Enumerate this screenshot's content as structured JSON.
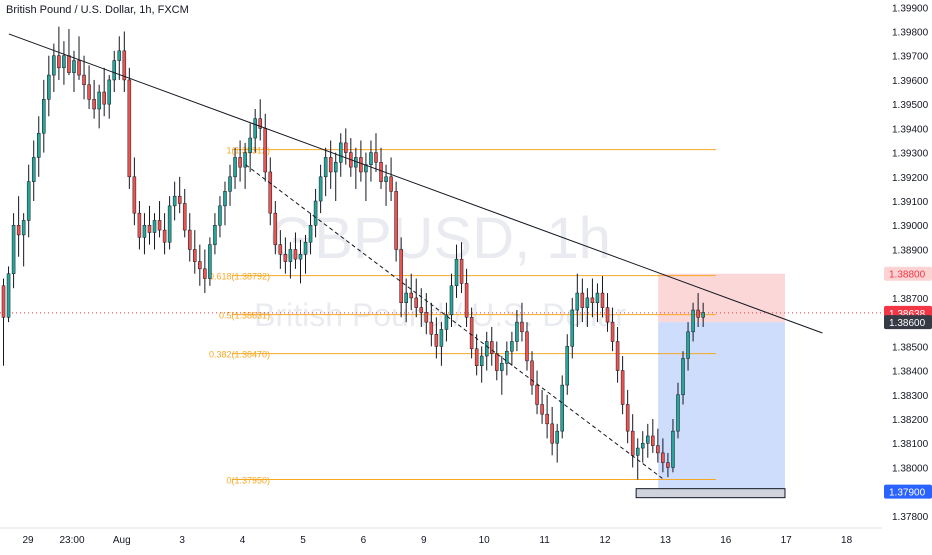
{
  "header": {
    "title": "British Pound / U.S. Dollar, 1h, FXCM"
  },
  "watermark": {
    "symbol": "GBPUSD, 1h",
    "name": "British Pound / U.S. Dollar"
  },
  "colors": {
    "up": "#26a69a",
    "down": "#ef5350",
    "candle": "#131722",
    "fib": "#f7a823",
    "stop_zone": "#fcd3d3",
    "target_zone": "#c9d9fc",
    "current_price_badge": "#f23645",
    "entry_badge": "#363a45",
    "target_badge": "#2962ff"
  },
  "chart_data": {
    "type": "candlestick",
    "x_axis": {
      "tick_labels": [
        "29",
        "23:00",
        "Aug",
        "3",
        "4",
        "5",
        "6",
        "9",
        "10",
        "11",
        "12",
        "13",
        "16",
        "17",
        "18"
      ]
    },
    "y_axis": {
      "range": [
        1.3775,
        1.3993
      ],
      "tick_labels": [
        "1.39900",
        "1.39800",
        "1.39700",
        "1.39600",
        "1.39500",
        "1.39400",
        "1.39300",
        "1.39200",
        "1.39100",
        "1.39000",
        "1.38900",
        "1.38700",
        "1.38500",
        "1.38400",
        "1.38300",
        "1.38200",
        "1.38100",
        "1.38000",
        "1.37800"
      ]
    },
    "price_badges": [
      {
        "label": "1.38800",
        "price": 1.388,
        "role": "stop"
      },
      {
        "label": "1.38638",
        "price": 1.38638,
        "role": "current"
      },
      {
        "label": "1.38600",
        "price": 1.386,
        "role": "entry"
      },
      {
        "label": "1.37900",
        "price": 1.379,
        "role": "target"
      }
    ],
    "fib_levels": [
      {
        "label": "1(1.39312)",
        "price": 1.39312
      },
      {
        "label": "0.618(1.38792)",
        "price": 1.38792
      },
      {
        "label": "0.5(1.38631)",
        "price": 1.38631
      },
      {
        "label": "0.382(1.38470)",
        "price": 1.3847
      },
      {
        "label": "0(1.37950)",
        "price": 1.3795
      }
    ],
    "trendline": {
      "start": {
        "x_index": 0.08,
        "price": 1.3979
      },
      "end": {
        "x_index": 13.55,
        "price": 1.38555
      }
    },
    "dashed_line": {
      "start": {
        "x_index": 4.0,
        "price": 1.3925
      },
      "end": {
        "x_index": 10.9,
        "price": 1.37955
      }
    },
    "position": {
      "type": "short",
      "entry": 1.386,
      "stop": 1.388,
      "target": 1.379,
      "x_start_index": 10.83,
      "x_end_index": 12.93
    },
    "candles_per_day": 12,
    "candles": [
      [
        1.3875,
        1.3878,
        1.3842,
        1.3862
      ],
      [
        1.3862,
        1.3883,
        1.386,
        1.388
      ],
      [
        1.388,
        1.3905,
        1.3874,
        1.39
      ],
      [
        1.39,
        1.3912,
        1.3887,
        1.3896
      ],
      [
        1.3896,
        1.3905,
        1.3883,
        1.3902
      ],
      [
        1.3902,
        1.3925,
        1.3895,
        1.3918
      ],
      [
        1.3918,
        1.3935,
        1.391,
        1.3928
      ],
      [
        1.3928,
        1.3945,
        1.392,
        1.3938
      ],
      [
        1.3938,
        1.396,
        1.393,
        1.3952
      ],
      [
        1.3952,
        1.397,
        1.3945,
        1.3962
      ],
      [
        1.3962,
        1.3975,
        1.3955,
        1.397
      ],
      [
        1.397,
        1.3982,
        1.396,
        1.3965
      ],
      [
        1.3965,
        1.3976,
        1.3958,
        1.397
      ],
      [
        1.397,
        1.3981,
        1.3962,
        1.3963
      ],
      [
        1.3963,
        1.3972,
        1.3955,
        1.3968
      ],
      [
        1.3968,
        1.3978,
        1.396,
        1.3962
      ],
      [
        1.3962,
        1.397,
        1.3952,
        1.3958
      ],
      [
        1.3958,
        1.3966,
        1.3948,
        1.3952
      ],
      [
        1.3952,
        1.396,
        1.3944,
        1.3948
      ],
      [
        1.3948,
        1.3958,
        1.394,
        1.3955
      ],
      [
        1.3955,
        1.3965,
        1.3945,
        1.395
      ],
      [
        1.395,
        1.3962,
        1.3944,
        1.396
      ],
      [
        1.396,
        1.3972,
        1.3955,
        1.3968
      ],
      [
        1.3968,
        1.3978,
        1.396,
        1.3972
      ],
      [
        1.3972,
        1.398,
        1.3955,
        1.396
      ],
      [
        1.396,
        1.3965,
        1.3915,
        1.392
      ],
      [
        1.392,
        1.3928,
        1.39,
        1.3905
      ],
      [
        1.3905,
        1.391,
        1.389,
        1.3895
      ],
      [
        1.3895,
        1.3905,
        1.3888,
        1.39
      ],
      [
        1.39,
        1.3908,
        1.3892,
        1.3897
      ],
      [
        1.3897,
        1.3905,
        1.389,
        1.3902
      ],
      [
        1.3902,
        1.391,
        1.3895,
        1.3898
      ],
      [
        1.3898,
        1.3905,
        1.3888,
        1.3893
      ],
      [
        1.3893,
        1.3912,
        1.389,
        1.3908
      ],
      [
        1.3908,
        1.3918,
        1.3902,
        1.3912
      ],
      [
        1.3912,
        1.392,
        1.3905,
        1.3909
      ],
      [
        1.3909,
        1.3915,
        1.3895,
        1.3898
      ],
      [
        1.3898,
        1.3905,
        1.3885,
        1.389
      ],
      [
        1.389,
        1.3898,
        1.388,
        1.3885
      ],
      [
        1.3885,
        1.3892,
        1.3875,
        1.3882
      ],
      [
        1.3882,
        1.389,
        1.3872,
        1.3878
      ],
      [
        1.3878,
        1.3895,
        1.3875,
        1.3892
      ],
      [
        1.3892,
        1.3905,
        1.3888,
        1.39
      ],
      [
        1.39,
        1.3912,
        1.3895,
        1.3908
      ],
      [
        1.3908,
        1.3918,
        1.39,
        1.3914
      ],
      [
        1.3914,
        1.3925,
        1.3908,
        1.392
      ],
      [
        1.392,
        1.3932,
        1.3915,
        1.3928
      ],
      [
        1.3928,
        1.3935,
        1.3918,
        1.3924
      ],
      [
        1.3924,
        1.3934,
        1.3915,
        1.393
      ],
      [
        1.393,
        1.3942,
        1.3922,
        1.3936
      ],
      [
        1.3936,
        1.3948,
        1.393,
        1.3944
      ],
      [
        1.3944,
        1.3952,
        1.3935,
        1.394
      ],
      [
        1.394,
        1.3946,
        1.3918,
        1.3922
      ],
      [
        1.3922,
        1.3928,
        1.39,
        1.3905
      ],
      [
        1.3905,
        1.391,
        1.3888,
        1.3892
      ],
      [
        1.3892,
        1.3898,
        1.3882,
        1.3888
      ],
      [
        1.3888,
        1.3895,
        1.388,
        1.3885
      ],
      [
        1.3885,
        1.3893,
        1.3878,
        1.389
      ],
      [
        1.389,
        1.3897,
        1.3882,
        1.3886
      ],
      [
        1.3886,
        1.3894,
        1.3876,
        1.3888
      ],
      [
        1.3888,
        1.3896,
        1.388,
        1.3893
      ],
      [
        1.3893,
        1.3905,
        1.3888,
        1.39
      ],
      [
        1.39,
        1.3915,
        1.3895,
        1.391
      ],
      [
        1.391,
        1.3925,
        1.3905,
        1.392
      ],
      [
        1.392,
        1.3932,
        1.3912,
        1.3928
      ],
      [
        1.3928,
        1.3935,
        1.3915,
        1.3922
      ],
      [
        1.3922,
        1.393,
        1.391,
        1.3926
      ],
      [
        1.3926,
        1.3938,
        1.392,
        1.3934
      ],
      [
        1.3934,
        1.394,
        1.3925,
        1.393
      ],
      [
        1.393,
        1.3936,
        1.392,
        1.3924
      ],
      [
        1.3924,
        1.3932,
        1.3915,
        1.3928
      ],
      [
        1.3928,
        1.3935,
        1.3918,
        1.3922
      ],
      [
        1.3922,
        1.393,
        1.391,
        1.3925
      ],
      [
        1.3925,
        1.3935,
        1.3918,
        1.393
      ],
      [
        1.393,
        1.3938,
        1.3922,
        1.3926
      ],
      [
        1.3926,
        1.3932,
        1.3915,
        1.3918
      ],
      [
        1.3918,
        1.3925,
        1.3908,
        1.392
      ],
      [
        1.392,
        1.3928,
        1.391,
        1.3914
      ],
      [
        1.3914,
        1.3918,
        1.3885,
        1.389
      ],
      [
        1.389,
        1.3895,
        1.3862,
        1.3868
      ],
      [
        1.3868,
        1.3878,
        1.386,
        1.3872
      ],
      [
        1.3872,
        1.388,
        1.3865,
        1.387
      ],
      [
        1.387,
        1.3878,
        1.3862,
        1.3866
      ],
      [
        1.3866,
        1.3874,
        1.3858,
        1.3864
      ],
      [
        1.3864,
        1.3872,
        1.3855,
        1.386
      ],
      [
        1.386,
        1.3868,
        1.385,
        1.3855
      ],
      [
        1.3855,
        1.3862,
        1.3845,
        1.385
      ],
      [
        1.385,
        1.386,
        1.3842,
        1.3857
      ],
      [
        1.3857,
        1.3868,
        1.3852,
        1.3863
      ],
      [
        1.3863,
        1.388,
        1.3858,
        1.3875
      ],
      [
        1.3875,
        1.3892,
        1.387,
        1.3886
      ],
      [
        1.3886,
        1.3893,
        1.3872,
        1.3876
      ],
      [
        1.3876,
        1.3882,
        1.3858,
        1.3862
      ],
      [
        1.3862,
        1.3866,
        1.3845,
        1.3849
      ],
      [
        1.3849,
        1.3855,
        1.3838,
        1.3842
      ],
      [
        1.3842,
        1.385,
        1.3835,
        1.3846
      ],
      [
        1.3846,
        1.3856,
        1.384,
        1.3852
      ],
      [
        1.3852,
        1.3858,
        1.3842,
        1.3847
      ],
      [
        1.3847,
        1.3852,
        1.3836,
        1.384
      ],
      [
        1.384,
        1.3846,
        1.383,
        1.3843
      ],
      [
        1.3843,
        1.3852,
        1.3838,
        1.3848
      ],
      [
        1.3848,
        1.3856,
        1.3842,
        1.3852
      ],
      [
        1.3852,
        1.3865,
        1.3848,
        1.386
      ],
      [
        1.386,
        1.3868,
        1.3852,
        1.3856
      ],
      [
        1.3856,
        1.386,
        1.384,
        1.3844
      ],
      [
        1.3844,
        1.3848,
        1.383,
        1.3834
      ],
      [
        1.3834,
        1.384,
        1.3822,
        1.3826
      ],
      [
        1.3826,
        1.3832,
        1.3818,
        1.3822
      ],
      [
        1.3822,
        1.383,
        1.3812,
        1.3818
      ],
      [
        1.3818,
        1.3825,
        1.3805,
        1.381
      ],
      [
        1.381,
        1.3818,
        1.3802,
        1.3815
      ],
      [
        1.3815,
        1.3838,
        1.3812,
        1.3834
      ],
      [
        1.3834,
        1.3855,
        1.383,
        1.385
      ],
      [
        1.385,
        1.387,
        1.3845,
        1.3865
      ],
      [
        1.3865,
        1.388,
        1.3858,
        1.3872
      ],
      [
        1.3872,
        1.3878,
        1.386,
        1.3866
      ],
      [
        1.3866,
        1.3874,
        1.3858,
        1.387
      ],
      [
        1.387,
        1.3878,
        1.3862,
        1.3868
      ],
      [
        1.3868,
        1.3876,
        1.386,
        1.3872
      ],
      [
        1.3872,
        1.3879,
        1.3862,
        1.3866
      ],
      [
        1.3866,
        1.3872,
        1.3856,
        1.386
      ],
      [
        1.386,
        1.3866,
        1.3848,
        1.3852
      ],
      [
        1.3852,
        1.3858,
        1.3835,
        1.384
      ],
      [
        1.384,
        1.3846,
        1.3822,
        1.3826
      ],
      [
        1.3826,
        1.3832,
        1.381,
        1.3815
      ],
      [
        1.3815,
        1.3822,
        1.38,
        1.3805
      ],
      [
        1.3805,
        1.3812,
        1.3795,
        1.3808
      ],
      [
        1.3808,
        1.3815,
        1.3802,
        1.381
      ],
      [
        1.381,
        1.3818,
        1.3804,
        1.3813
      ],
      [
        1.3813,
        1.382,
        1.3806,
        1.3809
      ],
      [
        1.3809,
        1.3816,
        1.3802,
        1.3806
      ],
      [
        1.3806,
        1.3812,
        1.3798,
        1.3802
      ],
      [
        1.3802,
        1.3806,
        1.3796,
        1.38
      ],
      [
        1.38,
        1.382,
        1.3798,
        1.3815
      ],
      [
        1.3815,
        1.3835,
        1.3812,
        1.383
      ],
      [
        1.383,
        1.3848,
        1.3826,
        1.3845
      ],
      [
        1.3845,
        1.386,
        1.384,
        1.3856
      ],
      [
        1.3856,
        1.3868,
        1.3852,
        1.3865
      ],
      [
        1.3865,
        1.3872,
        1.3858,
        1.3862
      ],
      [
        1.3862,
        1.3868,
        1.3858,
        1.3864
      ]
    ]
  }
}
